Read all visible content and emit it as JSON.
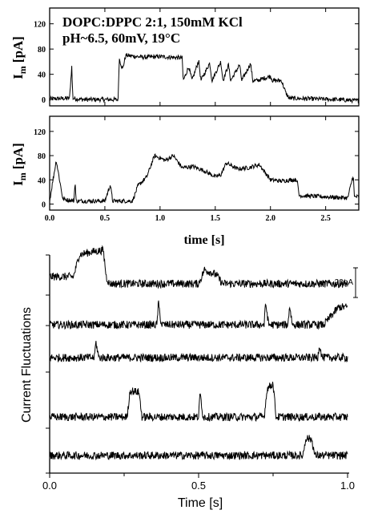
{
  "chart_data": [
    {
      "type": "line",
      "annotation_lines": [
        "DOPC:DPPC 2:1, 150mM KCl",
        "pH~6.5, 60mV,  19°C"
      ],
      "ylabel_main": "I",
      "ylabel_sub": "m",
      "ylabel_unit": "[pA]",
      "yticks": [
        "0",
        "40",
        "80",
        "120"
      ],
      "ylim": [
        -10,
        145
      ],
      "xlim": [
        0,
        2.8
      ],
      "series": [
        {
          "points": [
            [
              0,
              1
            ],
            [
              0.18,
              2
            ],
            [
              0.2,
              52
            ],
            [
              0.21,
              2
            ],
            [
              0.3,
              0
            ],
            [
              0.62,
              0
            ],
            [
              0.63,
              65
            ],
            [
              0.66,
              48
            ],
            [
              0.69,
              70
            ],
            [
              0.85,
              67
            ],
            [
              1.0,
              68
            ],
            [
              1.2,
              66
            ],
            [
              1.21,
              30
            ],
            [
              1.26,
              52
            ],
            [
              1.29,
              30
            ],
            [
              1.35,
              62
            ],
            [
              1.37,
              30
            ],
            [
              1.45,
              58
            ],
            [
              1.47,
              30
            ],
            [
              1.55,
              60
            ],
            [
              1.57,
              30
            ],
            [
              1.62,
              55
            ],
            [
              1.64,
              30
            ],
            [
              1.72,
              55
            ],
            [
              1.74,
              30
            ],
            [
              1.82,
              57
            ],
            [
              1.84,
              30
            ],
            [
              1.88,
              30
            ],
            [
              2.0,
              37
            ],
            [
              2.02,
              30
            ],
            [
              2.1,
              30
            ],
            [
              2.14,
              10
            ],
            [
              2.17,
              2
            ],
            [
              2.4,
              1
            ],
            [
              2.6,
              0
            ],
            [
              2.8,
              -2
            ]
          ]
        }
      ]
    },
    {
      "type": "line",
      "ylabel_main": "I",
      "ylabel_sub": "m",
      "ylabel_unit": "[pA]",
      "yticks": [
        "0",
        "40",
        "80",
        "120"
      ],
      "xticks": [
        "0.0",
        "0.5",
        "1.0",
        "1.5",
        "2.0",
        "2.5"
      ],
      "xlabel": "time [s]",
      "ylim": [
        -10,
        145
      ],
      "xlim": [
        0,
        2.8
      ],
      "series": [
        {
          "points": [
            [
              0,
              5
            ],
            [
              0.03,
              40
            ],
            [
              0.06,
              72
            ],
            [
              0.09,
              40
            ],
            [
              0.12,
              8
            ],
            [
              0.2,
              6
            ],
            [
              0.22,
              5
            ],
            [
              0.23,
              38
            ],
            [
              0.24,
              5
            ],
            [
              0.5,
              5
            ],
            [
              0.55,
              32
            ],
            [
              0.57,
              5
            ],
            [
              0.75,
              5
            ],
            [
              0.8,
              30
            ],
            [
              0.88,
              45
            ],
            [
              0.95,
              80
            ],
            [
              1.05,
              72
            ],
            [
              1.12,
              80
            ],
            [
              1.2,
              60
            ],
            [
              1.3,
              62
            ],
            [
              1.4,
              55
            ],
            [
              1.5,
              45
            ],
            [
              1.55,
              48
            ],
            [
              1.6,
              68
            ],
            [
              1.7,
              58
            ],
            [
              1.8,
              60
            ],
            [
              1.9,
              65
            ],
            [
              2.0,
              40
            ],
            [
              2.1,
              38
            ],
            [
              2.2,
              40
            ],
            [
              2.24,
              40
            ],
            [
              2.26,
              14
            ],
            [
              2.5,
              12
            ],
            [
              2.7,
              10
            ],
            [
              2.75,
              48
            ],
            [
              2.76,
              12
            ],
            [
              2.8,
              12
            ]
          ]
        }
      ]
    },
    {
      "type": "line",
      "ylabel": "Current Fluctuations",
      "xlabel": "Time [s]",
      "xticks": [
        "0.0",
        "0.5",
        "1.0"
      ],
      "xlim": [
        0,
        1.0
      ],
      "scalebar_label": "20pA",
      "series": [
        {
          "points": [
            [
              0,
              10
            ],
            [
              0.08,
              10
            ],
            [
              0.1,
              35
            ],
            [
              0.14,
              38
            ],
            [
              0.18,
              40
            ],
            [
              0.19,
              10
            ],
            [
              0.2,
              2
            ],
            [
              0.5,
              2
            ],
            [
              0.52,
              18
            ],
            [
              0.56,
              12
            ],
            [
              0.58,
              2
            ],
            [
              0.9,
              2
            ],
            [
              0.97,
              2
            ],
            [
              1.0,
              2
            ]
          ]
        },
        {
          "points": [
            [
              0,
              0
            ],
            [
              0.36,
              0
            ],
            [
              0.365,
              25
            ],
            [
              0.375,
              0
            ],
            [
              0.72,
              0
            ],
            [
              0.725,
              25
            ],
            [
              0.735,
              0
            ],
            [
              0.8,
              0
            ],
            [
              0.805,
              22
            ],
            [
              0.815,
              0
            ],
            [
              0.92,
              0
            ],
            [
              0.95,
              12
            ],
            [
              0.97,
              20
            ],
            [
              1.0,
              20
            ]
          ]
        },
        {
          "points": [
            [
              0,
              0
            ],
            [
              0.15,
              0
            ],
            [
              0.155,
              18
            ],
            [
              0.165,
              0
            ],
            [
              0.9,
              0
            ],
            [
              0.905,
              15
            ],
            [
              0.915,
              0
            ],
            [
              1.0,
              0
            ]
          ]
        },
        {
          "points": [
            [
              0,
              0
            ],
            [
              0.26,
              0
            ],
            [
              0.27,
              30
            ],
            [
              0.3,
              28
            ],
            [
              0.31,
              0
            ],
            [
              0.5,
              0
            ],
            [
              0.505,
              28
            ],
            [
              0.515,
              0
            ],
            [
              0.72,
              0
            ],
            [
              0.73,
              32
            ],
            [
              0.75,
              38
            ],
            [
              0.76,
              0
            ],
            [
              0.78,
              0
            ],
            [
              1.0,
              0
            ]
          ]
        },
        {
          "points": [
            [
              0,
              0
            ],
            [
              0.85,
              0
            ],
            [
              0.86,
              20
            ],
            [
              0.88,
              18
            ],
            [
              0.89,
              0
            ],
            [
              1.0,
              0
            ]
          ]
        }
      ]
    }
  ]
}
